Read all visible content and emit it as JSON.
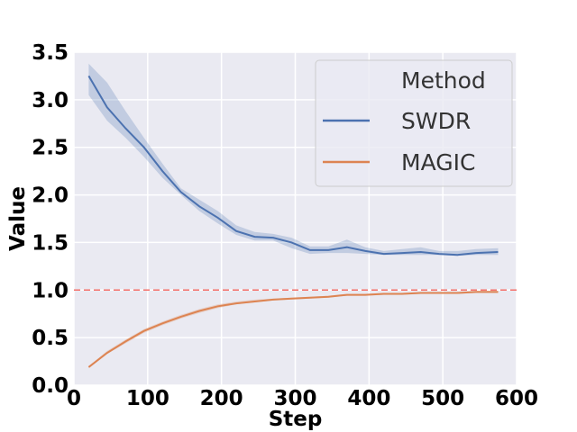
{
  "chart_data": {
    "type": "line",
    "title": "",
    "xlabel": "Step",
    "ylabel": "Value",
    "xlim": [
      0,
      600
    ],
    "ylim": [
      0,
      3.5
    ],
    "xticks": [
      "0",
      "100",
      "200",
      "300",
      "400",
      "500",
      "600"
    ],
    "yticks": [
      "0.0",
      "0.5",
      "1.0",
      "1.5",
      "2.0",
      "2.5",
      "3.0",
      "3.5"
    ],
    "grid": true,
    "legend": {
      "title": "Method",
      "position": "top-right"
    },
    "reference_line": {
      "y": 1.0,
      "color": "#f4706a",
      "style": "dashed"
    },
    "series": [
      {
        "name": "SWDR",
        "color": "#4c72b0",
        "x": [
          20,
          45,
          70,
          95,
          120,
          145,
          170,
          195,
          220,
          245,
          270,
          295,
          320,
          345,
          370,
          395,
          420,
          445,
          470,
          495,
          520,
          545,
          575
        ],
        "values": [
          3.25,
          2.92,
          2.7,
          2.5,
          2.25,
          2.03,
          1.88,
          1.76,
          1.62,
          1.56,
          1.55,
          1.5,
          1.42,
          1.42,
          1.45,
          1.41,
          1.38,
          1.39,
          1.4,
          1.38,
          1.37,
          1.39,
          1.4
        ],
        "lower": [
          3.05,
          2.78,
          2.6,
          2.4,
          2.18,
          2.0,
          1.83,
          1.7,
          1.58,
          1.52,
          1.52,
          1.44,
          1.38,
          1.39,
          1.39,
          1.38,
          1.37,
          1.37,
          1.37,
          1.37,
          1.36,
          1.37,
          1.37
        ],
        "upper": [
          3.38,
          3.18,
          2.88,
          2.6,
          2.33,
          2.07,
          1.95,
          1.83,
          1.68,
          1.61,
          1.59,
          1.55,
          1.46,
          1.46,
          1.53,
          1.45,
          1.41,
          1.43,
          1.45,
          1.41,
          1.41,
          1.43,
          1.44
        ]
      },
      {
        "name": "MAGIC",
        "color": "#dd8452",
        "x": [
          20,
          45,
          70,
          95,
          120,
          145,
          170,
          195,
          220,
          245,
          270,
          295,
          320,
          345,
          370,
          395,
          420,
          445,
          470,
          495,
          520,
          545,
          575
        ],
        "values": [
          0.19,
          0.34,
          0.46,
          0.57,
          0.65,
          0.72,
          0.78,
          0.83,
          0.86,
          0.88,
          0.9,
          0.91,
          0.92,
          0.93,
          0.95,
          0.95,
          0.96,
          0.96,
          0.97,
          0.97,
          0.97,
          0.98,
          0.98
        ],
        "lower": [
          0.18,
          0.33,
          0.44,
          0.55,
          0.63,
          0.7,
          0.76,
          0.81,
          0.85,
          0.87,
          0.89,
          0.9,
          0.91,
          0.92,
          0.94,
          0.94,
          0.95,
          0.95,
          0.96,
          0.96,
          0.96,
          0.97,
          0.97
        ],
        "upper": [
          0.2,
          0.36,
          0.48,
          0.59,
          0.67,
          0.74,
          0.8,
          0.85,
          0.88,
          0.9,
          0.91,
          0.92,
          0.93,
          0.94,
          0.96,
          0.96,
          0.97,
          0.97,
          0.98,
          0.98,
          0.98,
          0.99,
          0.99
        ]
      }
    ]
  }
}
